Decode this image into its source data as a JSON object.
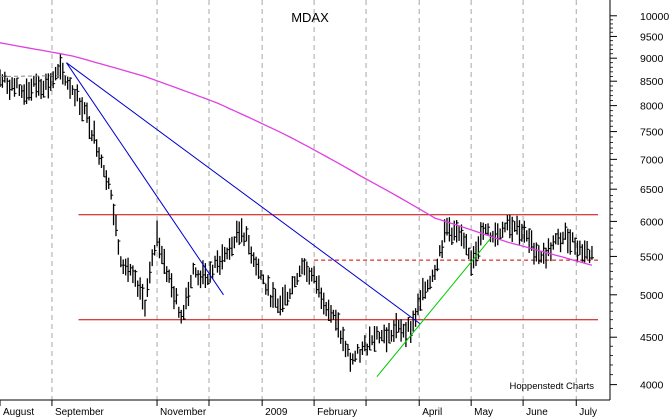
{
  "chart_data": {
    "type": "line",
    "title": "MDAX",
    "credit": "Hoppenstedt Charts",
    "xlabel": "",
    "ylabel": "",
    "y_scale": "log",
    "ylim": [
      3850,
      10400
    ],
    "y_ticks": [
      4000,
      4500,
      5000,
      5500,
      6000,
      6500,
      7000,
      7500,
      8000,
      8500,
      9000,
      9500,
      10000
    ],
    "grid": "vertical-dashed",
    "month_labels": [
      {
        "label": "August",
        "grid_week": 0
      },
      {
        "label": "September",
        "grid_week": 4.3
      },
      {
        "label": "November",
        "grid_week": 13
      },
      {
        "label": "",
        "grid_week": 17.3
      },
      {
        "label": "2009",
        "grid_week": 21.7
      },
      {
        "label": "February",
        "grid_week": 26
      },
      {
        "label": "",
        "grid_week": 30.3
      },
      {
        "label": "April",
        "grid_week": 34.7
      },
      {
        "label": "May",
        "grid_week": 39
      },
      {
        "label": "June",
        "grid_week": 43.3
      },
      {
        "label": "July",
        "grid_week": 47.7
      }
    ],
    "series": [
      {
        "type": "bar",
        "color": "#000000",
        "points": [
          [
            0,
            8550
          ],
          [
            1,
            8400
          ],
          [
            2,
            8280
          ],
          [
            3,
            8420
          ],
          [
            4,
            8450
          ],
          [
            5,
            8700
          ],
          [
            6,
            8350
          ],
          [
            7,
            7900
          ],
          [
            8,
            7300
          ],
          [
            9,
            6600
          ],
          [
            10,
            5500
          ],
          [
            11,
            5200
          ],
          [
            12,
            4900
          ],
          [
            13,
            5800
          ],
          [
            14,
            5200
          ],
          [
            15,
            4750
          ],
          [
            16,
            5300
          ],
          [
            17,
            5200
          ],
          [
            18,
            5400
          ],
          [
            19,
            5600
          ],
          [
            20,
            5900
          ],
          [
            21,
            5500
          ],
          [
            22,
            5100
          ],
          [
            23,
            4850
          ],
          [
            24,
            5050
          ],
          [
            25,
            5400
          ],
          [
            26,
            5200
          ],
          [
            27,
            4900
          ],
          [
            28,
            4600
          ],
          [
            29,
            4250
          ],
          [
            30,
            4350
          ],
          [
            31,
            4550
          ],
          [
            32,
            4500
          ],
          [
            33,
            4600
          ],
          [
            34,
            4600
          ],
          [
            35,
            5000
          ],
          [
            36,
            5350
          ],
          [
            37,
            5900
          ],
          [
            38,
            5800
          ],
          [
            39,
            5450
          ],
          [
            40,
            5850
          ],
          [
            41,
            5800
          ],
          [
            42,
            6000
          ],
          [
            43,
            5900
          ],
          [
            44,
            5650
          ],
          [
            45,
            5500
          ],
          [
            46,
            5700
          ],
          [
            47,
            5800
          ],
          [
            48,
            5600
          ],
          [
            49,
            5530
          ]
        ]
      },
      {
        "name": "",
        "color": "#e040e0",
        "points": [
          [
            0,
            9350
          ],
          [
            6,
            9050
          ],
          [
            12,
            8600
          ],
          [
            18,
            8050
          ],
          [
            24,
            7400
          ],
          [
            30,
            6700
          ],
          [
            36,
            6050
          ],
          [
            42,
            5700
          ],
          [
            49,
            5380
          ]
        ]
      }
    ],
    "trendlines": [
      {
        "color": "#0000cc",
        "from": [
          5.5,
          8900
        ],
        "to": [
          18.5,
          5000
        ]
      },
      {
        "color": "#0000cc",
        "from": [
          5.5,
          8900
        ],
        "to": [
          34.8,
          4650
        ]
      },
      {
        "color": "#00cc00",
        "from": [
          31.2,
          4080
        ],
        "to": [
          40.6,
          5750
        ]
      },
      {
        "color": "#cc0000",
        "from": [
          6.5,
          6100
        ],
        "to": [
          49.5,
          6100
        ]
      },
      {
        "color": "#cc0000",
        "from": [
          6.5,
          4700
        ],
        "to": [
          49.5,
          4700
        ]
      },
      {
        "color": "#cc0000",
        "from": [
          26,
          5450
        ],
        "to": [
          49.5,
          5450
        ],
        "dashed": true
      },
      {
        "color": "#888888",
        "from": [
          0,
          8600
        ],
        "to": [
          5.5,
          8620
        ],
        "dashed": true
      }
    ]
  }
}
